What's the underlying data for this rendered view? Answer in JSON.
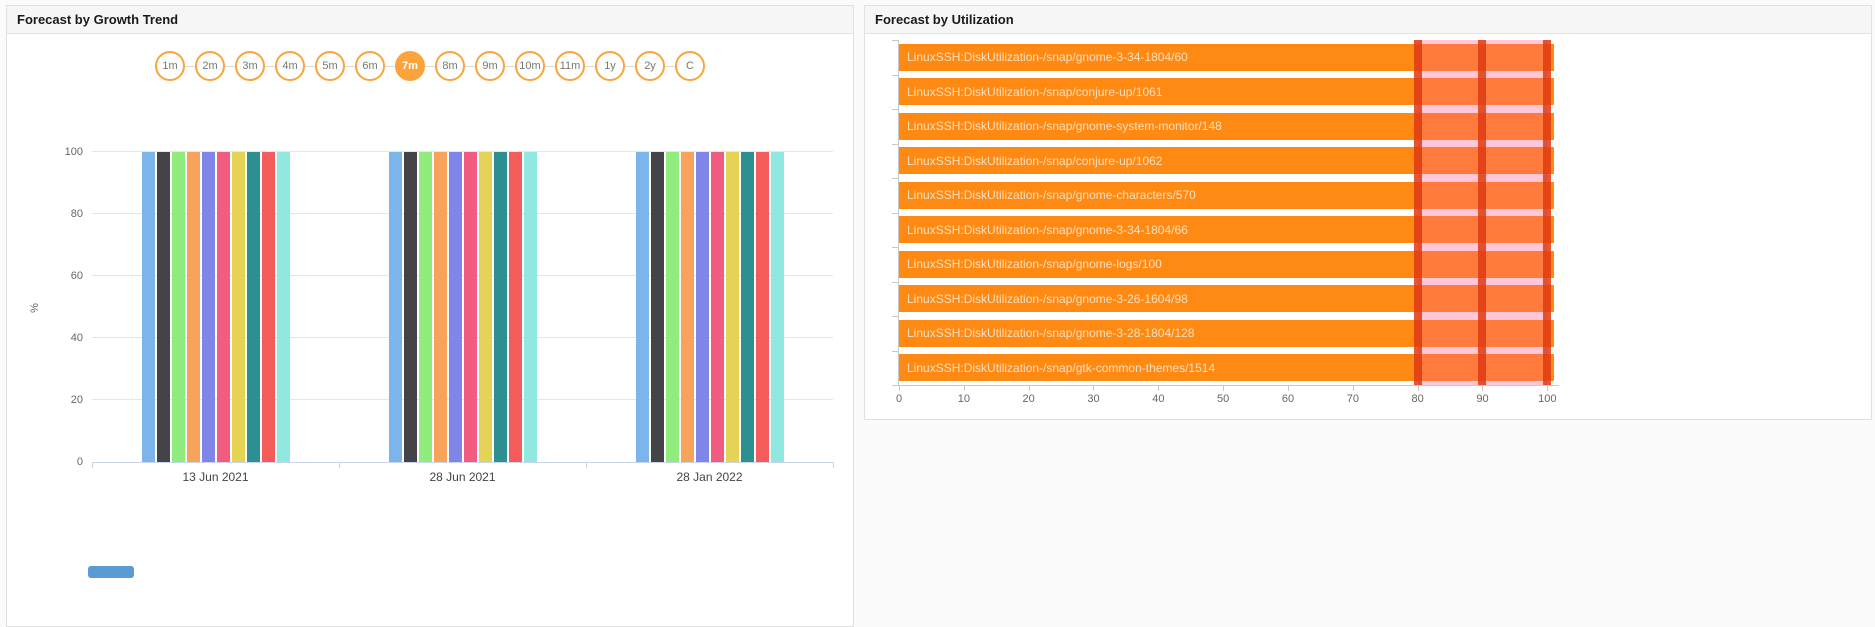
{
  "left_panel": {
    "title": "Forecast by Growth Trend",
    "accent": "#fba43c",
    "range_buttons": [
      "1m",
      "2m",
      "3m",
      "4m",
      "5m",
      "6m",
      "7m",
      "8m",
      "9m",
      "10m",
      "11m",
      "1y",
      "2y",
      "C"
    ],
    "selected_range": "7m"
  },
  "right_panel": {
    "title": "Forecast by Utilization"
  },
  "chart_data": [
    {
      "type": "bar",
      "title": "Forecast by Growth Trend",
      "ylabel": "%",
      "categories": [
        "13 Jun 2021",
        "28 Jun 2021",
        "28 Jan 2022"
      ],
      "series": [
        {
          "color": "#7cb5ec",
          "values": [
            100,
            100,
            100
          ]
        },
        {
          "color": "#434348",
          "values": [
            100,
            100,
            100
          ]
        },
        {
          "color": "#90ed7d",
          "values": [
            100,
            100,
            100
          ]
        },
        {
          "color": "#f7a35c",
          "values": [
            100,
            100,
            100
          ]
        },
        {
          "color": "#8085e9",
          "values": [
            100,
            100,
            100
          ]
        },
        {
          "color": "#f15c80",
          "values": [
            100,
            100,
            100
          ]
        },
        {
          "color": "#e4d354",
          "values": [
            100,
            100,
            100
          ]
        },
        {
          "color": "#2b908f",
          "values": [
            100,
            100,
            100
          ]
        },
        {
          "color": "#f45b5b",
          "values": [
            100,
            100,
            100
          ]
        },
        {
          "color": "#91e8e1",
          "values": [
            100,
            100,
            100
          ]
        }
      ],
      "ylim": [
        0,
        100
      ],
      "yticks": [
        0,
        20,
        40,
        60,
        80,
        100
      ],
      "grid": true,
      "legend": false
    },
    {
      "type": "bar",
      "orientation": "horizontal",
      "title": "Forecast by Utilization",
      "categories": [
        "LinuxSSH:DiskUtilization-/snap/gnome-3-34-1804/60",
        "LinuxSSH:DiskUtilization-/snap/conjure-up/1061",
        "LinuxSSH:DiskUtilization-/snap/gnome-system-monitor/148",
        "LinuxSSH:DiskUtilization-/snap/conjure-up/1062",
        "LinuxSSH:DiskUtilization-/snap/gnome-characters/570",
        "LinuxSSH:DiskUtilization-/snap/gnome-3-34-1804/66",
        "LinuxSSH:DiskUtilization-/snap/gnome-logs/100",
        "LinuxSSH:DiskUtilization-/snap/gnome-3-26-1604/98",
        "LinuxSSH:DiskUtilization-/snap/gnome-3-28-1804/128",
        "LinuxSSH:DiskUtilization-/snap/gtk-common-themes/1514"
      ],
      "values": [
        101,
        101,
        101,
        101,
        101,
        101,
        101,
        101,
        101,
        101
      ],
      "xlim": [
        0,
        101.8
      ],
      "xticks": [
        0,
        10,
        20,
        30,
        40,
        50,
        60,
        70,
        80,
        90,
        100
      ],
      "bar_color": "#ff8a13",
      "threshold_lines": {
        "values": [
          80,
          90,
          100
        ],
        "color": "#df3a10"
      },
      "threshold_band": {
        "from": 80,
        "to": 100,
        "color": "#ff5f8d"
      },
      "grid": false,
      "legend": false
    }
  ]
}
